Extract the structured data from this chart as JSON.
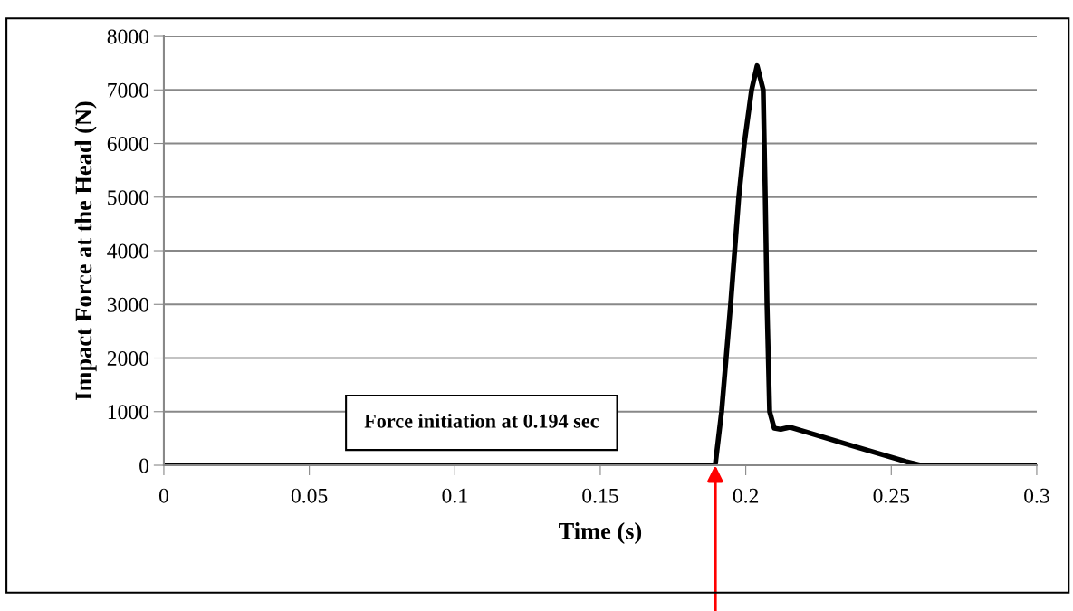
{
  "chart_data": {
    "type": "line",
    "xlabel": "Time (s)",
    "ylabel": "Impact Force at the Head (N)",
    "x": [
      0,
      0.18,
      0.1895,
      0.1917,
      0.1948,
      0.1976,
      0.1995,
      0.202,
      0.2039,
      0.206,
      0.2067,
      0.2073,
      0.2082,
      0.2098,
      0.212,
      0.2151,
      0.2362,
      0.255,
      0.26,
      0.3
    ],
    "series": [
      {
        "color": "#000000",
        "values": [
          0,
          0,
          0,
          1000,
          3000,
          5000,
          6000,
          7000,
          7450,
          7000,
          5000,
          3000,
          1000,
          690,
          670,
          710,
          370,
          70,
          0,
          0
        ]
      }
    ],
    "xlim": [
      0,
      0.3
    ],
    "xticks": [
      0,
      0.05,
      0.1,
      0.15,
      0.2,
      0.25,
      0.3
    ],
    "ylim": [
      0,
      8000
    ],
    "yticks": [
      0,
      1000,
      2000,
      3000,
      4000,
      5000,
      6000,
      7000,
      8000
    ],
    "grid": "y",
    "legend": false,
    "marker": "none",
    "line_style": "solid",
    "annotations": [
      "Force initiation at 0.194 sec"
    ]
  }
}
